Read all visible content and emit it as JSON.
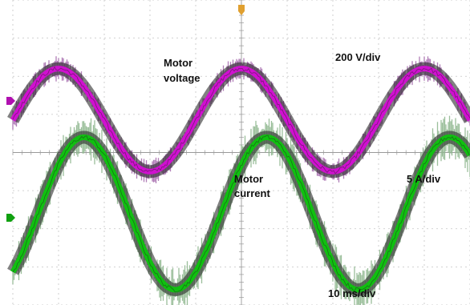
{
  "chart_data": {
    "type": "line",
    "title": "",
    "xlabel": "",
    "ylabel": "",
    "grid": true,
    "grid_divisions": {
      "x": 10,
      "y": 8
    },
    "x_unit": "ms",
    "x_range": [
      0,
      100
    ],
    "y_range_div": [
      -4,
      4
    ],
    "series": [
      {
        "name": "Motor voltage",
        "unit_label": "200 V/div",
        "color": "#d010d0",
        "envelope_color": "#a870b0",
        "channel": 1,
        "ground_level_div": 0.85,
        "amplitude_div": 1.35,
        "period_ms": 40,
        "phase_deg": 0,
        "noise_div": 0.25
      },
      {
        "name": "Motor current",
        "unit_label": "5 A/div",
        "color": "#10c010",
        "envelope_color": "#90b890",
        "channel": 2,
        "ground_level_div": -1.6,
        "amplitude_div": 2.0,
        "period_ms": 40,
        "phase_deg": -50,
        "noise_div": 0.45
      }
    ],
    "annotations": {
      "motor_voltage_lines": [
        "Motor",
        "voltage"
      ],
      "voltage_scale": "200 V/div",
      "motor_current_lines": [
        "Motor",
        "current"
      ],
      "current_scale": "5 A/div",
      "time_scale": "10 ms/div"
    },
    "markers": {
      "trigger_color": "#e0a030",
      "ch1_color": "#b010b0",
      "ch2_color": "#10a010"
    }
  }
}
